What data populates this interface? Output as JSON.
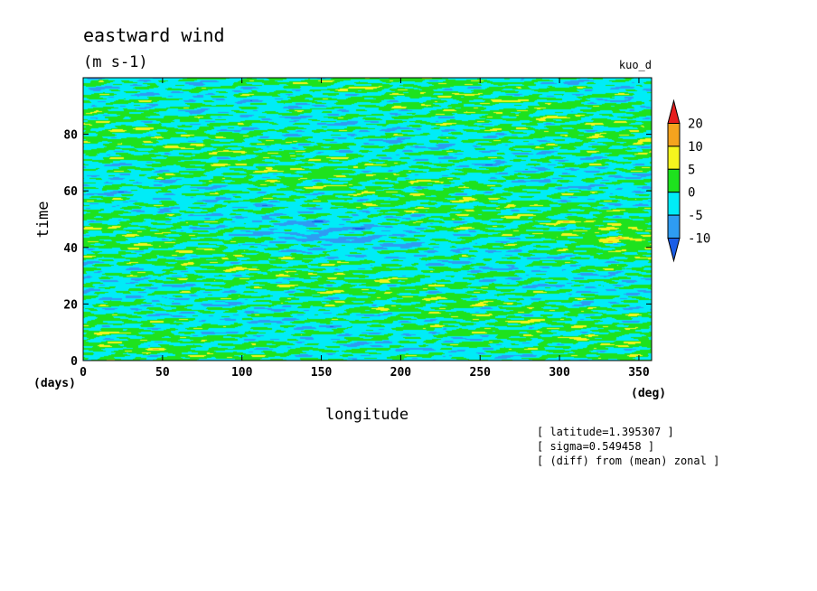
{
  "chart_data": {
    "type": "heatmap",
    "title": "eastward wind",
    "units": "(m s-1)",
    "experiment": "kuo_d",
    "xlabel": "longitude",
    "x_unit": "(deg)",
    "ylabel": "time",
    "y_unit": "(days)",
    "xlim": [
      0,
      358
    ],
    "ylim": [
      0,
      100
    ],
    "x_ticks": [
      0,
      50,
      100,
      150,
      200,
      250,
      300,
      350
    ],
    "y_ticks": [
      0,
      20,
      40,
      60,
      80
    ],
    "colorbar": {
      "levels": [
        -10,
        -5,
        0,
        5,
        10,
        20
      ],
      "labels": [
        "20",
        "10",
        "5",
        "0",
        "-5",
        "-10"
      ],
      "colors": {
        "below_-10": "#1a5de6",
        "-10_to_-5": "#2e9cf2",
        "-5_to_0": "#00ecf7",
        "0_to_5": "#1ee21e",
        "5_to_10": "#f5f51e",
        "10_to_20": "#f5a31e",
        "above_20": "#e61e1e"
      }
    },
    "annotations": [
      "[ latitude=1.395307 ]",
      "[ sigma=0.549458 ]",
      "[ (diff) from (mean) zonal ]"
    ]
  }
}
